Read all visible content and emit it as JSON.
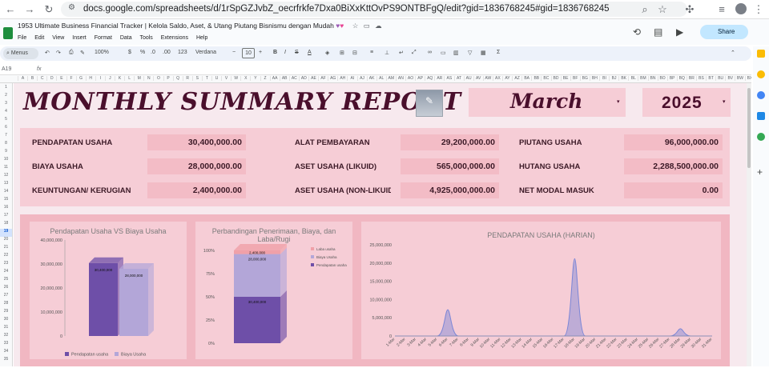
{
  "browser": {
    "url": "docs.google.com/spreadsheets/d/1rSpGZJvbZ_oecrfrkfe7Dxa0BiXxKttOvPS9ONTBFgQ/edit?gid=1836768245#gid=1836768245"
  },
  "doc": {
    "title": "1953  Ultimate Business Financial Tracker | Kelola Saldo, Aset, & Utang Piutang Bisnismu dengan Mudah",
    "share_label": "Share",
    "menu": [
      "File",
      "Edit",
      "View",
      "Insert",
      "Format",
      "Data",
      "Tools",
      "Extensions",
      "Help"
    ]
  },
  "toolbar": {
    "menus_label": "Menus",
    "zoom": "100%",
    "currency": "$",
    "percent": "%",
    "dec_less": ".0",
    "dec_more": ".00",
    "number_format": "123",
    "font": "Verdana",
    "font_size": "10"
  },
  "formula_bar": {
    "cell_ref": "A19",
    "fx": "fx"
  },
  "columns": [
    "A",
    "B",
    "C",
    "D",
    "E",
    "F",
    "G",
    "H",
    "I",
    "J",
    "K",
    "L",
    "M",
    "N",
    "O",
    "P",
    "Q",
    "R",
    "S",
    "T",
    "U",
    "V",
    "W",
    "X",
    "Y",
    "Z",
    "AA",
    "AB",
    "AC",
    "AD",
    "AE",
    "AF",
    "AG",
    "AH",
    "AI",
    "AJ",
    "AK",
    "AL",
    "AM",
    "AN",
    "AO",
    "AP",
    "AQ",
    "AR",
    "AS",
    "AT",
    "AU",
    "AV",
    "AW",
    "AX",
    "AY",
    "AZ",
    "BA",
    "BB",
    "BC",
    "BD",
    "BE",
    "BF",
    "BG",
    "BH",
    "BI",
    "BJ",
    "BK",
    "BL",
    "BM",
    "BN",
    "BO",
    "BP",
    "BQ",
    "BR",
    "BS",
    "BT",
    "BU",
    "BV",
    "BW",
    "BX"
  ],
  "rows": [
    "1",
    "2",
    "3",
    "4",
    "5",
    "6",
    "7",
    "8",
    "9",
    "10",
    "11",
    "12",
    "13",
    "14",
    "15",
    "16",
    "17",
    "18",
    "19",
    "20",
    "21",
    "22",
    "23",
    "24",
    "25",
    "26",
    "27",
    "28",
    "29",
    "30",
    "31",
    "32",
    "33",
    "34",
    "35"
  ],
  "report": {
    "title": "MONTHLY SUMMARY REPORT",
    "month": "March",
    "year": "2025"
  },
  "summary": {
    "pendapatan_usaha": {
      "label": "PENDAPATAN USAHA",
      "value": "30,400,000.00"
    },
    "biaya_usaha": {
      "label": "BIAYA USAHA",
      "value": "28,000,000.00"
    },
    "keuntungan": {
      "label": "KEUNTUNGAN/ KERUGIAN",
      "value": "2,400,000.00"
    },
    "alat_pembayaran": {
      "label": "ALAT PEMBAYARAN",
      "value": "29,200,000.00"
    },
    "aset_likuid": {
      "label": "ASET USAHA (LIKUID)",
      "value": "565,000,000.00"
    },
    "aset_non_likuid": {
      "label": "ASET USAHA (NON-LIKUID",
      "value": "4,925,000,000.00"
    },
    "piutang_usaha": {
      "label": "PIUTANG USAHA",
      "value": "96,000,000.00"
    },
    "hutang_usaha": {
      "label": "HUTANG USAHA",
      "value": "2,288,500,000.00"
    },
    "net_modal": {
      "label": "NET MODAL MASUK",
      "value": "0.00"
    }
  },
  "chart_data": [
    {
      "type": "bar",
      "title": "Pendapatan Usaha VS Biaya Usaha",
      "categories": [
        "Pendapatan usaha",
        "Biaya Usaha"
      ],
      "values": [
        30400000,
        28000000
      ],
      "data_labels": [
        "30,400,000",
        "28,000,000"
      ],
      "ylim": [
        0,
        40000000
      ],
      "yticks": [
        "0",
        "10,000,000",
        "20,000,000",
        "30,000,000",
        "40,000,000"
      ],
      "colors": [
        "#6e4fa8",
        "#b3a6d8"
      ],
      "legend": "bottom"
    },
    {
      "type": "bar",
      "title": "Perbandingan Penerimaan, Biaya, dan Laba/Rugi",
      "stacked_percent": true,
      "series": [
        {
          "name": "Pendapatan usaha",
          "value": 30400000,
          "label": "30,400,000"
        },
        {
          "name": "Biaya Usaha",
          "value": 28000000,
          "label": "28,000,000"
        },
        {
          "name": "Laba usaha",
          "value": 2400000,
          "label": "2,400,000"
        }
      ],
      "yticks": [
        "0%",
        "25%",
        "50%",
        "75%",
        "100%"
      ],
      "colors": [
        "#6e4fa8",
        "#b3a6d8",
        "#f0a0a8"
      ],
      "legend": "right"
    },
    {
      "type": "area",
      "title": "PENDAPATAN USAHA (HARIAN)",
      "x": [
        "1-Mar",
        "2-Mar",
        "3-Mar",
        "4-Mar",
        "5-Mar",
        "6-Mar",
        "7-Mar",
        "8-Mar",
        "9-Mar",
        "10-Mar",
        "11-Mar",
        "12-Mar",
        "13-Mar",
        "14-Mar",
        "15-Mar",
        "16-Mar",
        "17-Mar",
        "18-Mar",
        "19-Mar",
        "20-Mar",
        "21-Mar",
        "22-Mar",
        "23-Mar",
        "24-Mar",
        "25-Mar",
        "26-Mar",
        "27-Mar",
        "28-Mar",
        "29-Mar",
        "30-Mar",
        "31-Mar"
      ],
      "values": [
        0,
        0,
        0,
        0,
        0,
        7200000,
        0,
        0,
        0,
        0,
        0,
        0,
        0,
        0,
        0,
        0,
        0,
        21200000,
        0,
        0,
        0,
        0,
        0,
        0,
        0,
        0,
        0,
        2000000,
        0,
        0,
        0
      ],
      "ylim": [
        0,
        25000000
      ],
      "yticks": [
        "0",
        "5,000,000",
        "10,000,000",
        "15,000,000",
        "20,000,000",
        "25,000,000"
      ],
      "color": "#7b86d6",
      "grid": false
    }
  ]
}
